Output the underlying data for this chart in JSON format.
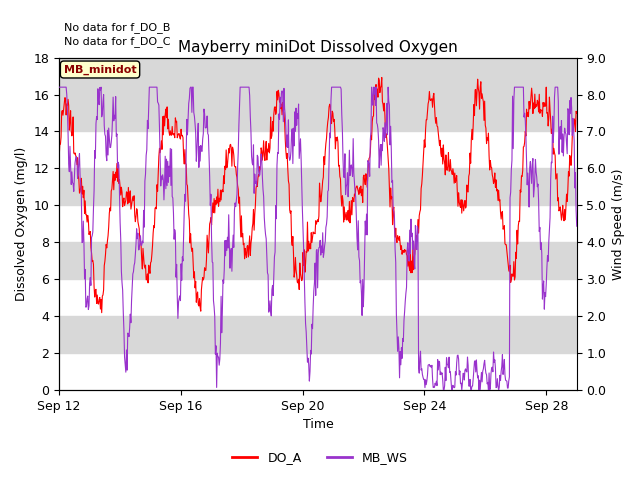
{
  "title": "Mayberry miniDot Dissolved Oxygen",
  "xlabel": "Time",
  "ylabel_left": "Dissolved Oxygen (mg/l)",
  "ylabel_right": "Wind Speed (m/s)",
  "annotation1": "No data for f_DO_B",
  "annotation2": "No data for f_DO_C",
  "legend_box_label": "MB_minidot",
  "x_ticks": [
    12,
    16,
    20,
    24,
    28
  ],
  "x_tick_labels": [
    "Sep 12",
    "Sep 16",
    "Sep 20",
    "Sep 24",
    "Sep 28"
  ],
  "ylim_left": [
    0,
    18
  ],
  "ylim_right": [
    0.0,
    9.0
  ],
  "yticks_left": [
    0,
    2,
    4,
    6,
    8,
    10,
    12,
    14,
    16,
    18
  ],
  "yticks_right": [
    0.0,
    1.0,
    2.0,
    3.0,
    4.0,
    5.0,
    6.0,
    7.0,
    8.0,
    9.0
  ],
  "ytick_labels_right": [
    "0.0",
    "1.0",
    "2.0",
    "3.0",
    "4.0",
    "5.0",
    "6.0",
    "7.0",
    "8.0",
    "9.0"
  ],
  "do_color": "#ff0000",
  "ws_color": "#9933cc",
  "bg_band_color": "#d8d8d8",
  "legend_do_label": "DO_A",
  "legend_ws_label": "MB_WS",
  "legend_box_bg": "#ffffcc",
  "figsize": [
    6.4,
    4.8
  ],
  "dpi": 100
}
